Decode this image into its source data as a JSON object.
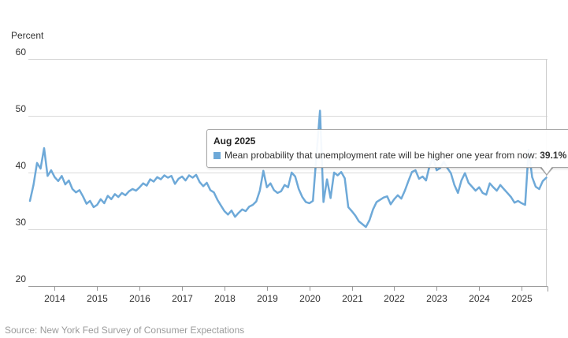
{
  "chart": {
    "y_axis_title": "Percent",
    "source": "Source: New York Fed Survey of Consumer Expectations",
    "tooltip": {
      "title": "Aug 2025",
      "series_label": "Mean probability that unemployment rate will be higher one year from now",
      "separator": ": ",
      "value": "39.1%"
    },
    "colors": {
      "line": "#6EA9D8",
      "grid": "#d9d9d9",
      "axis": "#999999",
      "tick": "#999999",
      "label": "#333333",
      "crosshair": "#cccccc",
      "source_text": "#9b9b9b"
    }
  },
  "chart_data": {
    "type": "line",
    "title": "",
    "xlabel": "",
    "ylabel": "Percent",
    "ylim": [
      20,
      60
    ],
    "y_ticks": [
      60,
      50,
      40,
      30,
      20
    ],
    "grid": "horizontal",
    "legend_position": "none",
    "frequency": "monthly",
    "x_start": "2013-06",
    "x_end": "2025-08",
    "x_tick_labels": [
      "2014",
      "2015",
      "2016",
      "2017",
      "2018",
      "2019",
      "2020",
      "2021",
      "2022",
      "2023",
      "2024",
      "2025"
    ],
    "series": [
      {
        "name": "Mean probability that unemployment rate will be higher one year from now",
        "values": [
          35.0,
          37.8,
          41.7,
          40.7,
          44.3,
          39.4,
          40.4,
          39.2,
          38.5,
          39.4,
          37.9,
          38.6,
          37.1,
          36.5,
          36.9,
          35.8,
          34.5,
          35.0,
          33.9,
          34.3,
          35.3,
          34.6,
          35.9,
          35.3,
          36.2,
          35.7,
          36.4,
          36.0,
          36.7,
          37.1,
          36.8,
          37.4,
          38.1,
          37.7,
          38.8,
          38.4,
          39.2,
          38.8,
          39.5,
          39.1,
          39.4,
          38.0,
          38.9,
          39.3,
          38.6,
          39.5,
          39.1,
          39.6,
          38.3,
          37.6,
          38.2,
          36.9,
          36.5,
          35.2,
          34.2,
          33.2,
          32.6,
          33.3,
          32.2,
          32.9,
          33.5,
          33.2,
          34.0,
          34.3,
          34.9,
          36.8,
          40.3,
          37.4,
          38.1,
          36.9,
          36.4,
          36.7,
          37.8,
          37.4,
          40.0,
          39.3,
          37.1,
          35.7,
          34.8,
          34.6,
          35.0,
          43.0,
          50.9,
          34.8,
          38.8,
          35.5,
          40.0,
          39.5,
          40.1,
          39.0,
          33.9,
          33.2,
          32.4,
          31.4,
          30.9,
          30.4,
          31.6,
          33.5,
          34.8,
          35.2,
          35.6,
          35.8,
          34.4,
          35.3,
          36.0,
          35.4,
          36.8,
          38.5,
          40.1,
          40.4,
          38.9,
          39.3,
          38.6,
          41.2,
          42.6,
          40.4,
          40.8,
          41.9,
          40.8,
          39.9,
          37.8,
          36.4,
          38.6,
          39.9,
          38.2,
          37.5,
          36.8,
          37.4,
          36.4,
          36.1,
          38.1,
          37.4,
          36.8,
          37.8,
          37.1,
          36.4,
          35.7,
          34.7,
          35.0,
          34.6,
          34.3,
          44.0,
          39.2,
          37.5,
          37.1,
          38.5,
          39.1
        ]
      }
    ],
    "highlight_point": {
      "x_label": "Aug 2025",
      "value": 39.1
    }
  }
}
